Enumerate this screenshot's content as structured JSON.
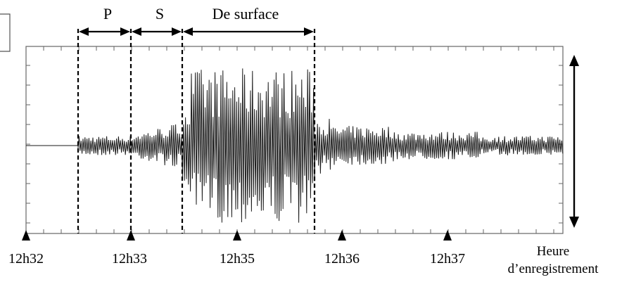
{
  "waves": [
    {
      "id": "p",
      "label": "P"
    },
    {
      "id": "s",
      "label": "S"
    },
    {
      "id": "surface",
      "label": "De surface"
    }
  ],
  "time_ticks": [
    "12h32",
    "12h33",
    "12h35",
    "12h36",
    "12h37"
  ],
  "axis_label": {
    "line1": "Heure",
    "line2": "d’enregistrement"
  },
  "colors": {
    "ink": "#000000",
    "trace": "#1a1a1a",
    "background": "#ffffff"
  }
}
